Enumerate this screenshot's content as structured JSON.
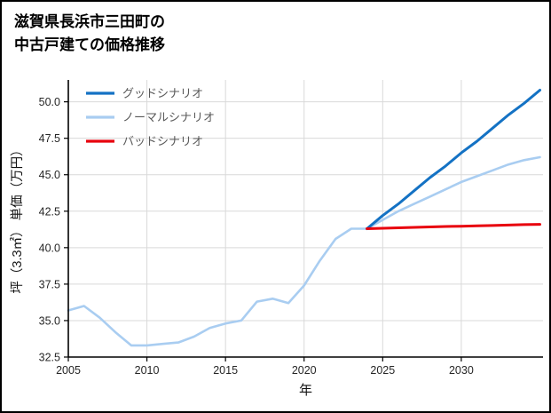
{
  "header": {
    "title_line1": "滋賀県長浜市三田町の",
    "title_line2": "中古戸建ての価格推移"
  },
  "chart_data": {
    "type": "line",
    "title": "滋賀県長浜市三田町の中古戸建ての価格推移",
    "xlabel": "年",
    "ylabel": "坪（3.3㎡） 単価（万円）",
    "xlim": [
      2005,
      2035.2
    ],
    "ylim": [
      32.5,
      51.5
    ],
    "xticks": [
      2005,
      2010,
      2015,
      2020,
      2025,
      2030
    ],
    "yticks": [
      32.5,
      35.0,
      37.5,
      40.0,
      42.5,
      45.0,
      47.5,
      50.0
    ],
    "grid": true,
    "grid_color": "#d9d9d9",
    "axis_color": "#000000",
    "tick_label_color": "#262626",
    "legend_text_color": "#595959",
    "legend_position": "upper-left",
    "draw_order": [
      1,
      0,
      2
    ],
    "series": [
      {
        "name": "グッドシナリオ",
        "color": "#1472c4",
        "width": 3,
        "x": [
          2024,
          2025,
          2026,
          2027,
          2028,
          2029,
          2030,
          2031,
          2032,
          2033,
          2034,
          2035
        ],
        "y": [
          41.3,
          42.2,
          43.0,
          43.9,
          44.8,
          45.6,
          46.5,
          47.3,
          48.2,
          49.1,
          49.9,
          50.8
        ]
      },
      {
        "name": "ノーマルシナリオ",
        "color": "#a9cdf1",
        "width": 2.6,
        "x": [
          2005,
          2006,
          2007,
          2008,
          2009,
          2010,
          2011,
          2012,
          2013,
          2014,
          2015,
          2016,
          2017,
          2018,
          2019,
          2020,
          2021,
          2022,
          2023,
          2024,
          2025,
          2026,
          2027,
          2028,
          2029,
          2030,
          2031,
          2032,
          2033,
          2034,
          2035
        ],
        "y": [
          35.7,
          36.0,
          35.2,
          34.2,
          33.3,
          33.3,
          33.4,
          33.5,
          33.9,
          34.5,
          34.8,
          35.0,
          36.3,
          36.5,
          36.2,
          37.4,
          39.1,
          40.6,
          41.3,
          41.3,
          41.9,
          42.5,
          43.0,
          43.5,
          44.0,
          44.5,
          44.9,
          45.3,
          45.7,
          46.0,
          46.2
        ]
      },
      {
        "name": "バッドシナリオ",
        "color": "#e8000d",
        "width": 3,
        "x": [
          2024,
          2025,
          2026,
          2027,
          2028,
          2029,
          2030,
          2031,
          2032,
          2033,
          2034,
          2035
        ],
        "y": [
          41.3,
          41.33,
          41.36,
          41.39,
          41.42,
          41.45,
          41.47,
          41.5,
          41.52,
          41.55,
          41.58,
          41.6
        ]
      }
    ]
  }
}
